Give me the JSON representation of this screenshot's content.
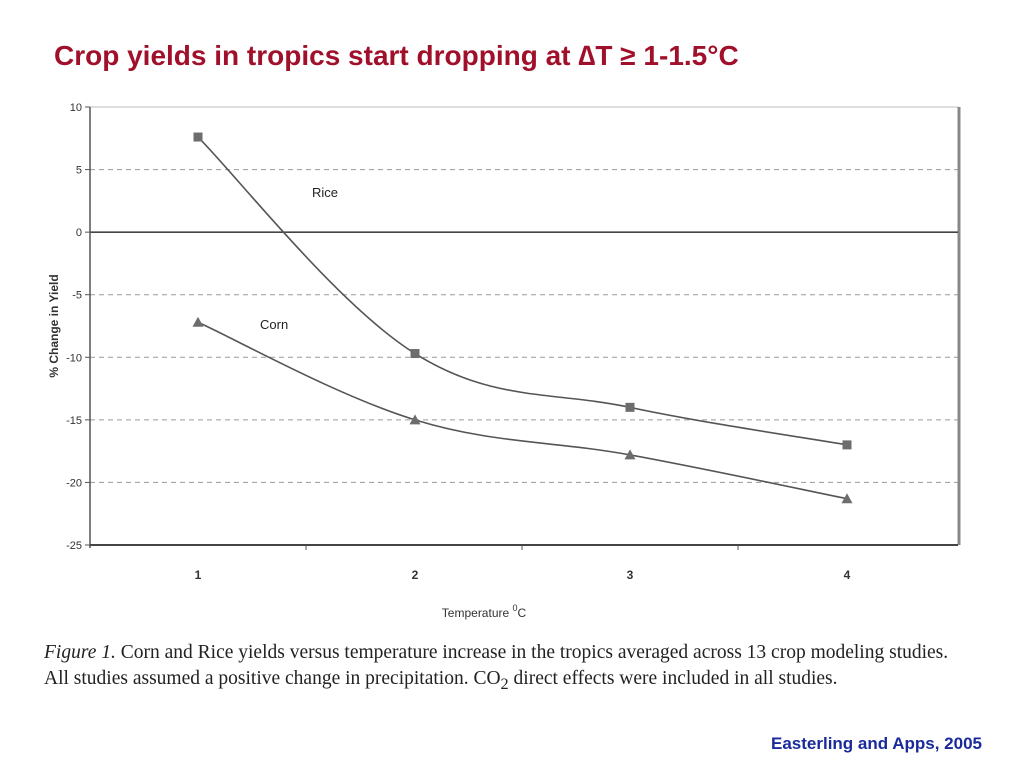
{
  "slide": {
    "title": "Crop yields in tropics start dropping at ∆T ≥ 1-1.5°C",
    "citation": "Easterling and Apps, 2005"
  },
  "caption": {
    "figure_label": "Figure 1.",
    "text_part1": " Corn and Rice yields versus temperature increase in the tropics averaged across 13 crop modeling studies. All studies assumed a positive change in precipitation. CO",
    "subscript": "2",
    "text_part2": " direct effects were included in all studies."
  },
  "chart_data": {
    "type": "line",
    "x": [
      1,
      2,
      3,
      4
    ],
    "x_tick_labels": [
      "1",
      "2",
      "3",
      "4"
    ],
    "xlabel_main": "Temperature ",
    "xlabel_sup": "0",
    "xlabel_unit": "C",
    "ylabel": "% Change in Yield",
    "ylim": [
      -25,
      10
    ],
    "y_ticks": [
      10,
      5,
      0,
      -5,
      -10,
      -15,
      -20,
      -25
    ],
    "y_tick_labels": [
      "10",
      "5",
      "0",
      "-5",
      "-10",
      "-15",
      "-20",
      "-25"
    ],
    "grid": "horizontal dashed",
    "series": [
      {
        "name": "Rice",
        "marker": "square",
        "values": [
          7.6,
          -9.7,
          -14.0,
          -17.0
        ]
      },
      {
        "name": "Corn",
        "marker": "triangle",
        "values": [
          -7.2,
          -15.0,
          -17.8,
          -21.3
        ]
      }
    ],
    "line_color": "#555555",
    "marker_color": "#6d6d6d"
  }
}
